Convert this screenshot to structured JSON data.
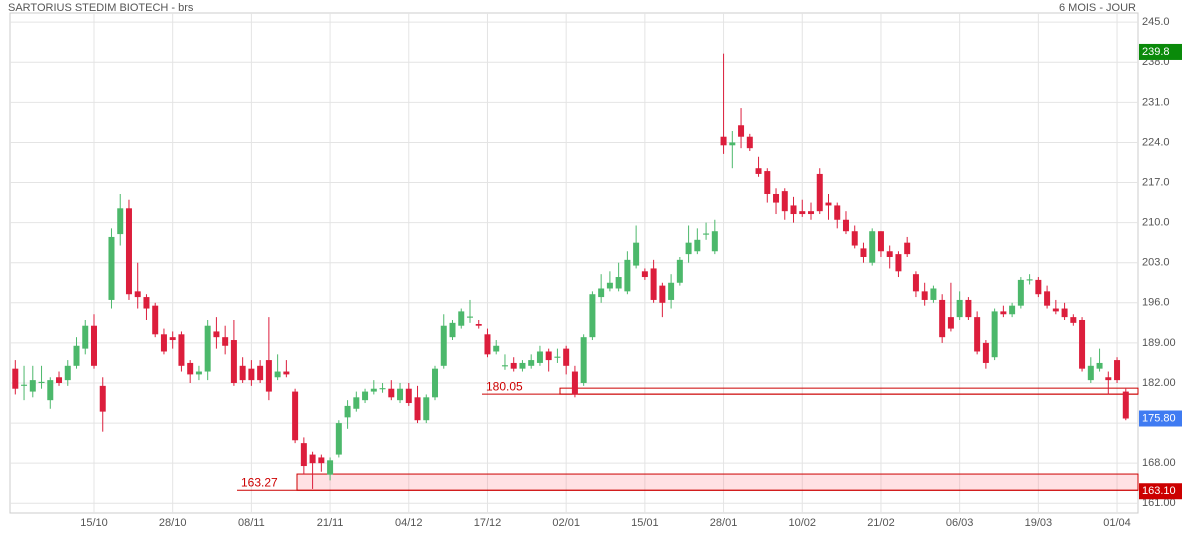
{
  "chart_data": {
    "type": "candlestick",
    "title": "SARTORIUS STEDIM BIOTECH - brs",
    "subtitle": "6 MOIS - JOUR",
    "up_color": "#4cb86b",
    "down_color": "#dc1e3c",
    "grid": true,
    "ylim": [
      159.3,
      246.6
    ],
    "yticks": [
      {
        "value": 245,
        "label": "245.0"
      },
      {
        "value": 238,
        "label": "238.0"
      },
      {
        "value": 231,
        "label": "231.0"
      },
      {
        "value": 224,
        "label": "224.0"
      },
      {
        "value": 217,
        "label": "217.0"
      },
      {
        "value": 210,
        "label": "210.0"
      },
      {
        "value": 203,
        "label": "203.0"
      },
      {
        "value": 196,
        "label": "196.0"
      },
      {
        "value": 189,
        "label": "189.00"
      },
      {
        "value": 182,
        "label": "182.00"
      },
      {
        "value": 175,
        "label": "175.00"
      },
      {
        "value": 168,
        "label": "168.00"
      },
      {
        "value": 161,
        "label": "161.00"
      }
    ],
    "categories": [
      null,
      null,
      null,
      null,
      null,
      null,
      null,
      null,
      null,
      "15/10",
      null,
      null,
      null,
      null,
      null,
      null,
      null,
      null,
      "28/10",
      null,
      null,
      null,
      null,
      null,
      null,
      null,
      null,
      "08/11",
      null,
      null,
      null,
      null,
      null,
      null,
      null,
      null,
      "21/11",
      null,
      null,
      null,
      null,
      null,
      null,
      null,
      null,
      "04/12",
      null,
      null,
      null,
      null,
      null,
      null,
      null,
      null,
      "17/12",
      null,
      null,
      null,
      null,
      null,
      null,
      null,
      null,
      "02/01",
      null,
      null,
      null,
      null,
      null,
      null,
      null,
      null,
      "15/01",
      null,
      null,
      null,
      null,
      null,
      null,
      null,
      null,
      "28/01",
      null,
      null,
      null,
      null,
      null,
      null,
      null,
      null,
      "10/02",
      null,
      null,
      null,
      null,
      null,
      null,
      null,
      null,
      "21/02",
      null,
      null,
      null,
      null,
      null,
      null,
      null,
      null,
      "06/03",
      null,
      null,
      null,
      null,
      null,
      null,
      null,
      null,
      "19/03",
      null,
      null,
      null,
      null,
      null,
      null,
      null,
      null,
      "01/04",
      null
    ],
    "open": [
      184.5,
      181.5,
      180.5,
      182,
      179,
      183,
      182.5,
      185,
      188,
      192,
      181.5,
      196.5,
      208,
      212.5,
      198,
      197,
      195.5,
      190.5,
      190,
      190.5,
      185.5,
      183.5,
      184,
      191,
      190,
      189.5,
      185,
      184.5,
      185,
      186,
      183,
      184,
      180.5,
      171.5,
      169.5,
      169,
      166,
      169.5,
      176,
      177.5,
      179,
      180.5,
      180.9,
      181,
      179,
      181,
      179.5,
      175.5,
      179.5,
      185,
      190,
      192,
      193.4,
      192.3,
      190.5,
      187.5,
      184.9,
      185.5,
      184.5,
      185,
      185.5,
      187.5,
      186.4,
      188,
      184,
      182,
      190,
      197,
      198.5,
      198.5,
      198,
      202.5,
      201.5,
      202,
      199,
      196.5,
      199.5,
      204.5,
      205,
      207.9,
      205,
      225,
      223.5,
      227,
      225,
      219.5,
      219,
      215,
      215.5,
      213,
      212,
      212,
      218.5,
      213.5,
      213,
      210.5,
      208.5,
      205.5,
      203,
      208.5,
      205,
      204.5,
      206.5,
      201,
      198,
      196.5,
      196.5,
      193.5,
      193.5,
      196.5,
      193.5,
      189,
      186.5,
      194.5,
      194,
      195.5,
      199.9,
      200,
      198,
      195,
      195,
      193.5,
      193,
      182.5,
      184.5,
      183,
      186,
      180.5
    ],
    "high": [
      186,
      185,
      185,
      185,
      183,
      184,
      186,
      190,
      193,
      194,
      183,
      209,
      215,
      214,
      203,
      197.5,
      196,
      191.5,
      191,
      191,
      186,
      185,
      193,
      193.5,
      192,
      193,
      186.5,
      186,
      186,
      193.5,
      187,
      186,
      181,
      172.5,
      170,
      169.5,
      169,
      175.5,
      179,
      180.5,
      181,
      182.5,
      182,
      182.5,
      182,
      182,
      181.5,
      180,
      185,
      194,
      193,
      195,
      196.5,
      193,
      191.5,
      189.5,
      187,
      186.5,
      186,
      187,
      188.5,
      188,
      188,
      188.5,
      185,
      190.5,
      198,
      201,
      201.5,
      203,
      205,
      209.5,
      202,
      203.5,
      199.5,
      201,
      204,
      209.5,
      209,
      210,
      210.5,
      239.5,
      226,
      230,
      225.5,
      221.5,
      219.5,
      216,
      216,
      214.5,
      214,
      213.5,
      219.5,
      215,
      213.5,
      212,
      209.5,
      206.5,
      209,
      208.5,
      206,
      205,
      207.5,
      201.5,
      199.5,
      199,
      197.5,
      199.5,
      198,
      197,
      194.5,
      189.5,
      195,
      195.5,
      196,
      200.5,
      201,
      200.5,
      199,
      196.5,
      196,
      194,
      193.5,
      186.5,
      188,
      184,
      186.5,
      181
    ],
    "low": [
      180,
      179,
      179.5,
      181,
      177.5,
      181.5,
      181.5,
      184.5,
      187,
      184.5,
      173.5,
      195,
      206,
      196.5,
      195,
      193,
      190,
      187,
      188,
      184,
      182,
      182.5,
      182.5,
      188,
      187,
      181.5,
      182,
      181.5,
      182,
      179,
      182.5,
      183,
      171.5,
      166,
      163.5,
      166.5,
      165,
      169,
      174,
      177,
      178.5,
      180,
      180.3,
      179,
      178.5,
      178,
      175,
      175,
      179,
      184.5,
      189.5,
      191.5,
      192.5,
      191.5,
      186.5,
      187,
      184.3,
      184,
      184,
      184.5,
      185,
      184,
      185.5,
      183.5,
      179.5,
      181.5,
      189.5,
      196,
      198,
      198,
      197.5,
      202,
      200,
      196,
      193.5,
      195,
      199,
      203,
      204.5,
      207,
      204.5,
      222,
      219.5,
      223,
      222.5,
      218,
      213.5,
      211.5,
      210.5,
      210,
      211,
      210.5,
      211.5,
      210.5,
      209,
      208,
      205.5,
      203,
      202.5,
      204,
      202,
      200.5,
      204,
      197,
      195.5,
      196,
      189,
      191,
      193,
      193,
      187,
      184.5,
      186,
      193.5,
      193.5,
      195,
      199.2,
      197,
      195,
      194,
      193,
      192,
      184,
      182,
      184,
      180,
      182,
      175.5
    ],
    "close": [
      181,
      181.7,
      182.5,
      182.2,
      182.5,
      182,
      185,
      188.5,
      192,
      185,
      177,
      207.5,
      212.5,
      197.5,
      197,
      195,
      190.5,
      187.5,
      189.5,
      185,
      183.5,
      184,
      192,
      190,
      188.5,
      182,
      182.5,
      182.5,
      182.5,
      180.5,
      184,
      183.5,
      172,
      167.5,
      168,
      168,
      168.5,
      175,
      178,
      179.5,
      180.5,
      181,
      181.1,
      179.5,
      181,
      178.5,
      175.5,
      179.5,
      184.5,
      192,
      192.5,
      194.5,
      193.6,
      192,
      187,
      188.5,
      185.1,
      184.5,
      185.5,
      186,
      187.5,
      186,
      186.6,
      185,
      180,
      190,
      197.5,
      198.5,
      199.5,
      200.5,
      203.5,
      206.5,
      200.5,
      196.5,
      196,
      199.5,
      203.5,
      206.5,
      207,
      208.1,
      208.5,
      223.5,
      224,
      225,
      223,
      218.5,
      215,
      213.5,
      212,
      211.5,
      211.5,
      211.5,
      212,
      213,
      210.5,
      208.5,
      206,
      204,
      208.5,
      205,
      204,
      201.5,
      204.5,
      198,
      196.5,
      198.5,
      190,
      191.5,
      196.5,
      193.5,
      187.5,
      185.5,
      194.5,
      194,
      195.5,
      200,
      200.1,
      197.5,
      195.5,
      194.5,
      193.5,
      192.5,
      184.5,
      185,
      185.5,
      182.5,
      182.5,
      175.8
    ],
    "zones": [
      {
        "label": "180.05",
        "value": 180.05,
        "top": 181.1,
        "color": "#cc0000"
      },
      {
        "label": "163.27",
        "value": 163.27,
        "top": 166.1,
        "color": "#cc0000"
      }
    ],
    "price_tags": [
      {
        "value": 239.8,
        "label": "239.8",
        "color": "#0a8a0a"
      },
      {
        "value": 175.8,
        "label": "175.80",
        "color": "#3f7bf2"
      },
      {
        "value": 163.1,
        "label": "163.10",
        "color": "#cc0000"
      }
    ]
  }
}
